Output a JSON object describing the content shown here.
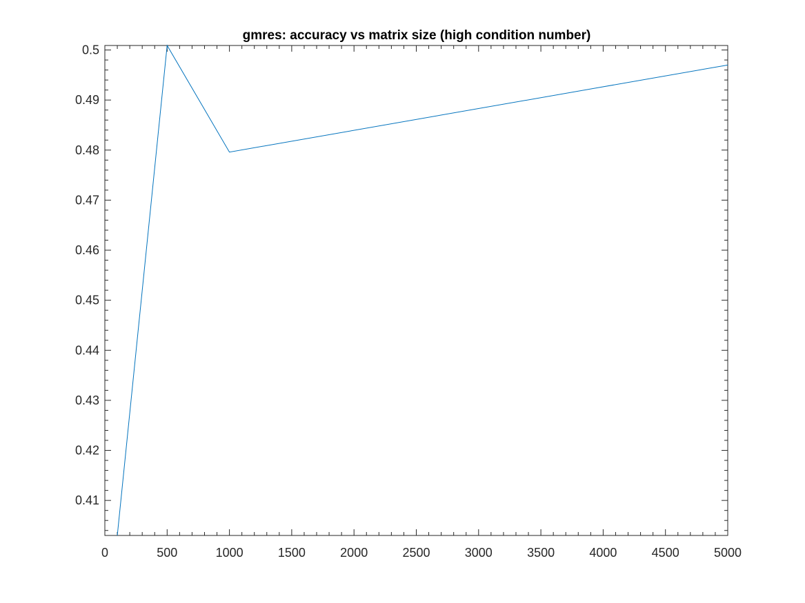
{
  "chart_data": {
    "type": "line",
    "title": "gmres: accuracy vs matrix size (high condition number)",
    "xlabel": "",
    "ylabel": "",
    "xlim": [
      0,
      5000
    ],
    "ylim": [
      0.403,
      0.5009
    ],
    "x_ticks": [
      0,
      500,
      1000,
      1500,
      2000,
      2500,
      3000,
      3500,
      4000,
      4500,
      5000
    ],
    "x_tick_labels": [
      "0",
      "500",
      "1000",
      "1500",
      "2000",
      "2500",
      "3000",
      "3500",
      "4000",
      "4500",
      "5000"
    ],
    "y_ticks": [
      0.41,
      0.42,
      0.43,
      0.44,
      0.45,
      0.46,
      0.47,
      0.48,
      0.49,
      0.5
    ],
    "y_tick_labels": [
      "0.41",
      "0.42",
      "0.43",
      "0.44",
      "0.45",
      "0.46",
      "0.47",
      "0.48",
      "0.49",
      "0.5"
    ],
    "grid": false,
    "box": true,
    "series": [
      {
        "color": "#0072BD",
        "x": [
          100,
          500,
          1000,
          5000
        ],
        "y": [
          0.403,
          0.5009,
          0.4796,
          0.497
        ]
      }
    ]
  }
}
